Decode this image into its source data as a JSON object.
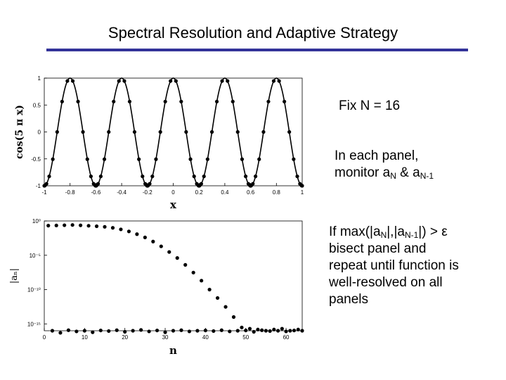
{
  "slide": {
    "title": "Spectral Resolution and Adaptive Strategy",
    "rule_color": "#333399",
    "fix_text": "Fix N = 16",
    "monitor_line1": "In each panel,",
    "monitor_prefix": "monitor a",
    "monitor_sub1": "N",
    "monitor_mid": " & a",
    "monitor_sub2": "N-1",
    "rule_line1_prefix": "If max(|a",
    "rule_line1_sub1": "N",
    "rule_line1_mid": "|,|a",
    "rule_line1_sub2": "N-1",
    "rule_line1_suffix": "|) > ε",
    "rule_line2": "bisect panel and",
    "rule_line3": "repeat until function is",
    "rule_line4": "well-resolved on all",
    "rule_line5": "panels"
  },
  "chart_data": [
    {
      "type": "line",
      "function": "cos(5πx)",
      "ylabel": "cos(5 π x)",
      "xlabel": "x",
      "xlim": [
        -1,
        1
      ],
      "ylim": [
        -1,
        1
      ],
      "xticks": [
        -1,
        -0.8,
        -0.6,
        -0.4,
        -0.2,
        0,
        0.2,
        0.4,
        0.6,
        0.8,
        1
      ],
      "xtick_labels": [
        "-1",
        "-0.8",
        "-0.6",
        "-0.4",
        "-0.2",
        "0",
        "0.2",
        "0.4",
        "0.6",
        "0.8",
        "1"
      ],
      "yticks": [
        -1,
        -0.5,
        0,
        0.5,
        1
      ],
      "ytick_labels": [
        "-1",
        "-0.5",
        "0",
        "0.5",
        "1"
      ],
      "panels": 5,
      "points_per_panel": 16
    },
    {
      "type": "scatter",
      "xlabel": "n",
      "ylabel": "|aₙ|",
      "y_scale": "log",
      "xlim": [
        0,
        64
      ],
      "ylim": [
        1e-16,
        1
      ],
      "xticks": [
        0,
        10,
        20,
        30,
        40,
        50,
        60
      ],
      "xtick_labels": [
        "0",
        "10",
        "20",
        "30",
        "40",
        "50",
        "60"
      ],
      "ytick_labels": [
        "10⁰",
        "10⁻⁵",
        "10⁻¹⁰",
        "10⁻¹⁵"
      ],
      "series": [
        {
          "x": [
            1,
            3,
            5,
            7,
            9,
            11,
            13,
            15,
            17,
            19,
            21,
            23,
            25,
            27,
            29,
            31,
            33,
            35,
            37,
            39,
            41,
            43,
            45,
            47,
            49,
            51,
            53,
            55,
            57,
            59,
            61,
            63
          ],
          "y": [
            0.21,
            0.22,
            0.24,
            0.26,
            0.23,
            0.2,
            0.17,
            0.14,
            0.1,
            0.06,
            0.03,
            0.012,
            0.004,
            0.001,
            0.0002,
            3e-05,
            4e-06,
            4e-07,
            3e-08,
            2e-09,
            1e-10,
            6e-12,
            3e-13,
            1e-14,
            3e-16,
            2e-16,
            1.5e-16,
            1e-16,
            1.5e-16,
            2e-16,
            1e-16,
            1.5e-16
          ]
        },
        {
          "x": [
            2,
            4,
            6,
            8,
            10,
            12,
            14,
            16,
            18,
            20,
            22,
            24,
            26,
            28,
            30,
            32,
            34,
            36,
            38,
            40,
            42,
            44,
            46,
            48,
            50,
            52,
            54,
            56,
            58,
            60,
            62,
            64
          ],
          "y": [
            1e-16,
            5e-17,
            1.2e-16,
            8e-17,
            1e-16,
            6e-17,
            1.1e-16,
            9e-17,
            1.2e-16,
            7e-17,
            1e-16,
            1.3e-16,
            8e-17,
            1.1e-16,
            6e-17,
            1e-16,
            1.2e-16,
            8e-17,
            1e-16,
            1.1e-16,
            9e-17,
            1.2e-16,
            8e-17,
            1e-16,
            1.1e-16,
            7e-17,
            1.2e-16,
            9e-17,
            1e-16,
            8e-17,
            1.1e-16,
            1e-16
          ]
        }
      ]
    }
  ]
}
